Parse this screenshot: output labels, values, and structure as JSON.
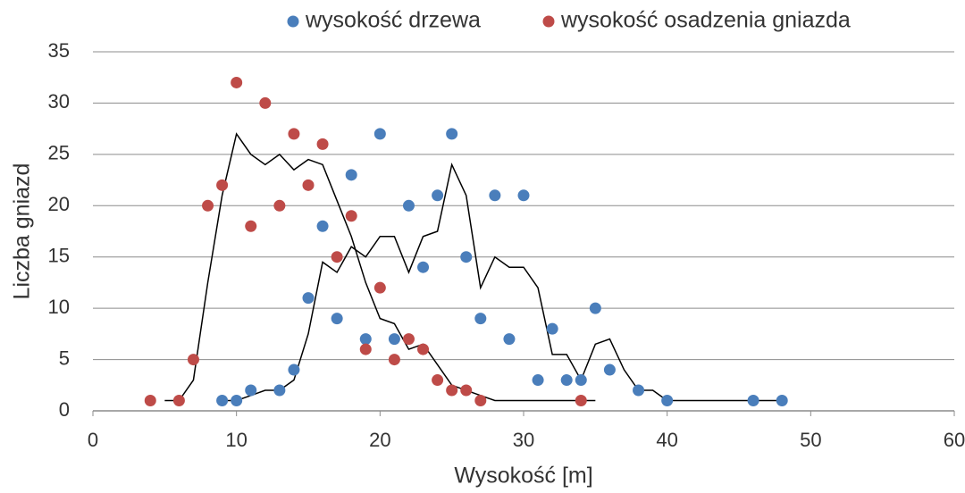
{
  "chart_data": {
    "type": "scatter",
    "x_label": "Wysokość [m]",
    "y_label": "Liczba gniazd",
    "xlim": [
      0,
      60
    ],
    "xticks": [
      0,
      10,
      20,
      30,
      40,
      50,
      60
    ],
    "ylim": [
      0,
      35
    ],
    "yticks": [
      0,
      5,
      10,
      15,
      20,
      25,
      30,
      35
    ],
    "grid": true,
    "legend": "top",
    "series": [
      {
        "name": "wysokość drzewa",
        "color": "#4a7ebb",
        "x": [
          9,
          10,
          11,
          13,
          14,
          15,
          16,
          17,
          18,
          19,
          20,
          21,
          22,
          23,
          24,
          25,
          26,
          27,
          28,
          29,
          30,
          31,
          32,
          33,
          34,
          35,
          36,
          38,
          40,
          46,
          48
        ],
        "values": [
          1,
          1,
          2,
          2,
          4,
          11,
          18,
          9,
          23,
          7,
          27,
          7,
          20,
          14,
          21,
          27,
          15,
          9,
          21,
          7,
          21,
          3,
          8,
          3,
          3,
          10,
          4,
          2,
          1,
          1,
          1
        ]
      },
      {
        "name": "wysokość osadzenia gniazda",
        "color": "#be4b48",
        "x": [
          4,
          6,
          7,
          8,
          9,
          10,
          11,
          12,
          13,
          14,
          15,
          16,
          17,
          18,
          19,
          20,
          21,
          22,
          23,
          24,
          25,
          26,
          27,
          34
        ],
        "values": [
          1,
          1,
          5,
          20,
          22,
          32,
          18,
          30,
          20,
          27,
          22,
          26,
          15,
          19,
          6,
          12,
          5,
          7,
          6,
          3,
          2,
          2,
          1,
          1
        ]
      }
    ],
    "lines": [
      {
        "color": "#000000",
        "x": [
          5,
          6,
          7,
          8,
          9,
          10,
          11,
          12,
          13,
          14,
          15,
          16,
          17,
          18,
          19,
          20,
          21,
          22,
          23,
          24,
          25,
          26,
          27,
          28,
          35
        ],
        "values": [
          1,
          1,
          3,
          12.5,
          21,
          27,
          25,
          24,
          25,
          23.5,
          24.5,
          24,
          20.5,
          17,
          12.5,
          9,
          8.5,
          6,
          6.5,
          4.5,
          2.5,
          2,
          1.5,
          1,
          1
        ]
      },
      {
        "color": "#000000",
        "x": [
          9,
          10,
          11,
          12,
          13,
          14,
          15,
          16,
          17,
          18,
          19,
          20,
          21,
          22,
          23,
          24,
          25,
          26,
          27,
          28,
          29,
          30,
          31,
          32,
          33,
          34,
          35,
          36,
          37,
          38,
          39,
          40,
          48
        ],
        "values": [
          1,
          1,
          1.5,
          2,
          2,
          3,
          7.5,
          14.5,
          13.5,
          16,
          15,
          17,
          17,
          13.5,
          17,
          17.5,
          24,
          21,
          12,
          15,
          14,
          14,
          12,
          5.5,
          5.5,
          3,
          6.5,
          7,
          4,
          2,
          2,
          1,
          1
        ]
      }
    ]
  }
}
